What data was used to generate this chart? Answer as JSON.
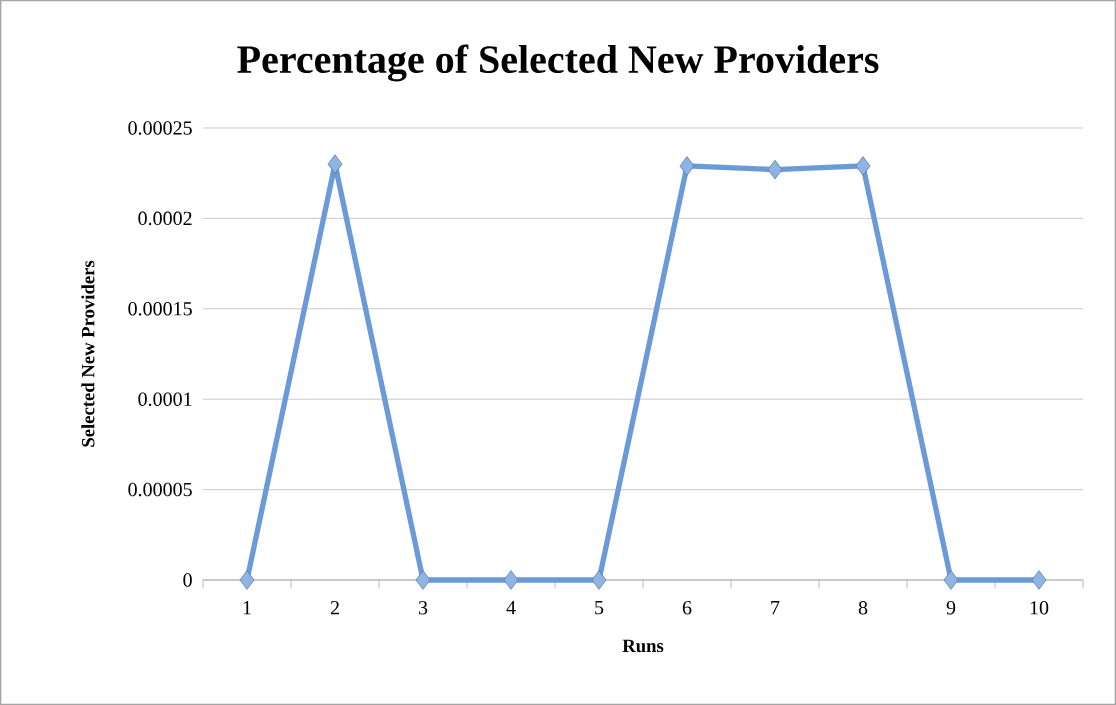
{
  "chart_data": {
    "type": "line",
    "title": "Percentage of Selected New Providers",
    "xlabel": "Runs",
    "ylabel": "Selected New Providers",
    "categories": [
      "1",
      "2",
      "3",
      "4",
      "5",
      "6",
      "7",
      "8",
      "9",
      "10"
    ],
    "values": [
      0,
      0.00023,
      0,
      0,
      0,
      0.000229,
      0.000227,
      0.000229,
      0,
      0
    ],
    "color": "#6a9bd8",
    "marker": "diamond",
    "grid": "y",
    "ylim": [
      0,
      0.00025
    ],
    "yticks": [
      {
        "value": 0,
        "label": "0"
      },
      {
        "value": 5e-05,
        "label": "0.00005"
      },
      {
        "value": 0.0001,
        "label": "0.0001"
      },
      {
        "value": 0.00015,
        "label": "0.00015"
      },
      {
        "value": 0.0002,
        "label": "0.0002"
      },
      {
        "value": 0.00025,
        "label": "0.00025"
      }
    ]
  }
}
